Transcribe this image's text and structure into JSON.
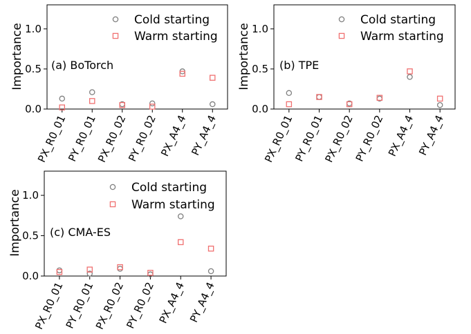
{
  "chart_data": [
    {
      "type": "scatter",
      "annotation": "(a) BoTorch",
      "ylabel": "Importance",
      "ylim": [
        0,
        1.3
      ],
      "yticks": [
        0.0,
        0.5,
        1.0
      ],
      "ytick_labels": [
        "0.0",
        "0.5",
        "1.0"
      ],
      "categories": [
        "PX_R0_01",
        "PY_R0_01",
        "PX_R0_02",
        "PY_R0_02",
        "PX_A4_4",
        "PY_A4_4"
      ],
      "legend_position": "top-right",
      "series": [
        {
          "name": "Cold starting",
          "marker": "circle",
          "color": "#7f7f7f",
          "values": [
            0.13,
            0.21,
            0.06,
            0.07,
            0.47,
            0.06
          ]
        },
        {
          "name": "Warm starting",
          "marker": "square",
          "color": "#f07070",
          "values": [
            0.02,
            0.1,
            0.05,
            0.03,
            0.44,
            0.39
          ]
        }
      ]
    },
    {
      "type": "scatter",
      "annotation": "(b) TPE",
      "ylabel": "Importance",
      "ylim": [
        0,
        1.3
      ],
      "yticks": [
        0.0,
        0.5,
        1.0
      ],
      "ytick_labels": [
        "0.0",
        "0.5",
        "1.0"
      ],
      "categories": [
        "PX_R0_01",
        "PY_R0_01",
        "PX_R0_02",
        "PY_R0_02",
        "PX_A4_4",
        "PY_A4_4"
      ],
      "legend_position": "top-right",
      "series": [
        {
          "name": "Cold starting",
          "marker": "circle",
          "color": "#7f7f7f",
          "values": [
            0.2,
            0.15,
            0.07,
            0.13,
            0.4,
            0.05
          ]
        },
        {
          "name": "Warm starting",
          "marker": "square",
          "color": "#f07070",
          "values": [
            0.06,
            0.15,
            0.06,
            0.14,
            0.47,
            0.13
          ]
        }
      ]
    },
    {
      "type": "scatter",
      "annotation": "(c) CMA-ES",
      "ylabel": "Importance",
      "ylim": [
        0,
        1.3
      ],
      "yticks": [
        0.0,
        0.5,
        1.0
      ],
      "ytick_labels": [
        "0.0",
        "0.5",
        "1.0"
      ],
      "categories": [
        "PX_R0_01",
        "PY_R0_01",
        "PX_R0_02",
        "PY_R0_02",
        "PX_A4_4",
        "PY_A4_4"
      ],
      "legend_position": "top-right",
      "series": [
        {
          "name": "Cold starting",
          "marker": "circle",
          "color": "#7f7f7f",
          "values": [
            0.07,
            0.03,
            0.09,
            0.02,
            0.74,
            0.06
          ]
        },
        {
          "name": "Warm starting",
          "marker": "square",
          "color": "#f07070",
          "values": [
            0.05,
            0.08,
            0.11,
            0.04,
            0.42,
            0.34
          ]
        }
      ]
    }
  ]
}
